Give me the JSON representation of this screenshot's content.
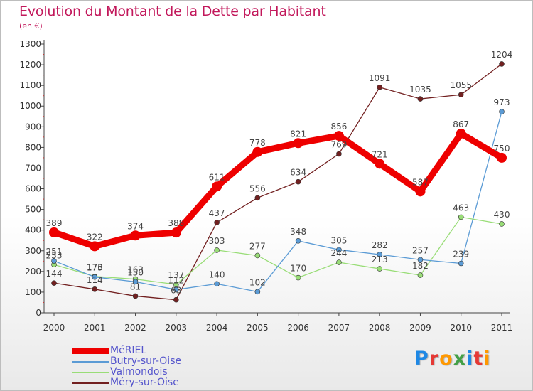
{
  "chart_data": {
    "type": "line",
    "title": "Evolution du Montant de la Dette par Habitant",
    "subtitle": "(en €)",
    "x": [
      "2000",
      "2001",
      "2002",
      "2003",
      "2004",
      "2005",
      "2006",
      "2007",
      "2008",
      "2009",
      "2010",
      "2011"
    ],
    "ylim": [
      0,
      1300
    ],
    "yticks": [
      0,
      100,
      200,
      300,
      400,
      500,
      600,
      700,
      800,
      900,
      1000,
      1100,
      1200,
      1300
    ],
    "grid": false,
    "legend": "bottom-left",
    "series": [
      {
        "name": "Méry-sur-Oise",
        "color": "#722020",
        "values": [
          144,
          114,
          81,
          63,
          437,
          556,
          634,
          769,
          1091,
          1035,
          1055,
          1204
        ]
      },
      {
        "name": "Valmondois",
        "color": "#99dd77",
        "values": [
          233,
          176,
          163,
          137,
          303,
          277,
          170,
          244,
          213,
          182,
          463,
          430
        ]
      },
      {
        "name": "Butry-sur-Oise",
        "color": "#5b9bd5",
        "values": [
          251,
          173,
          150,
          112,
          140,
          102,
          348,
          305,
          282,
          257,
          239,
          973
        ]
      },
      {
        "name": "MéRIEL",
        "color": "#ee0000",
        "values": [
          389,
          322,
          374,
          388,
          611,
          778,
          821,
          856,
          721,
          587,
          867,
          750
        ]
      }
    ]
  },
  "legend_items": [
    {
      "name": "MéRIEL",
      "color": "#ee0000",
      "thickness": 9
    },
    {
      "name": "Butry-sur-Oise",
      "color": "#5b9bd5",
      "thickness": 2
    },
    {
      "name": "Valmondois",
      "color": "#99dd77",
      "thickness": 2
    },
    {
      "name": "Méry-sur-Oise",
      "color": "#722020",
      "thickness": 2
    }
  ],
  "logo": {
    "letters": [
      "P",
      "r",
      "o",
      "x",
      "i",
      "t",
      "i"
    ],
    "colors": [
      "#1e88e5",
      "#e53935",
      "#ff9800",
      "#43a047",
      "#1e88e5",
      "#e53935",
      "#ff9800"
    ]
  }
}
